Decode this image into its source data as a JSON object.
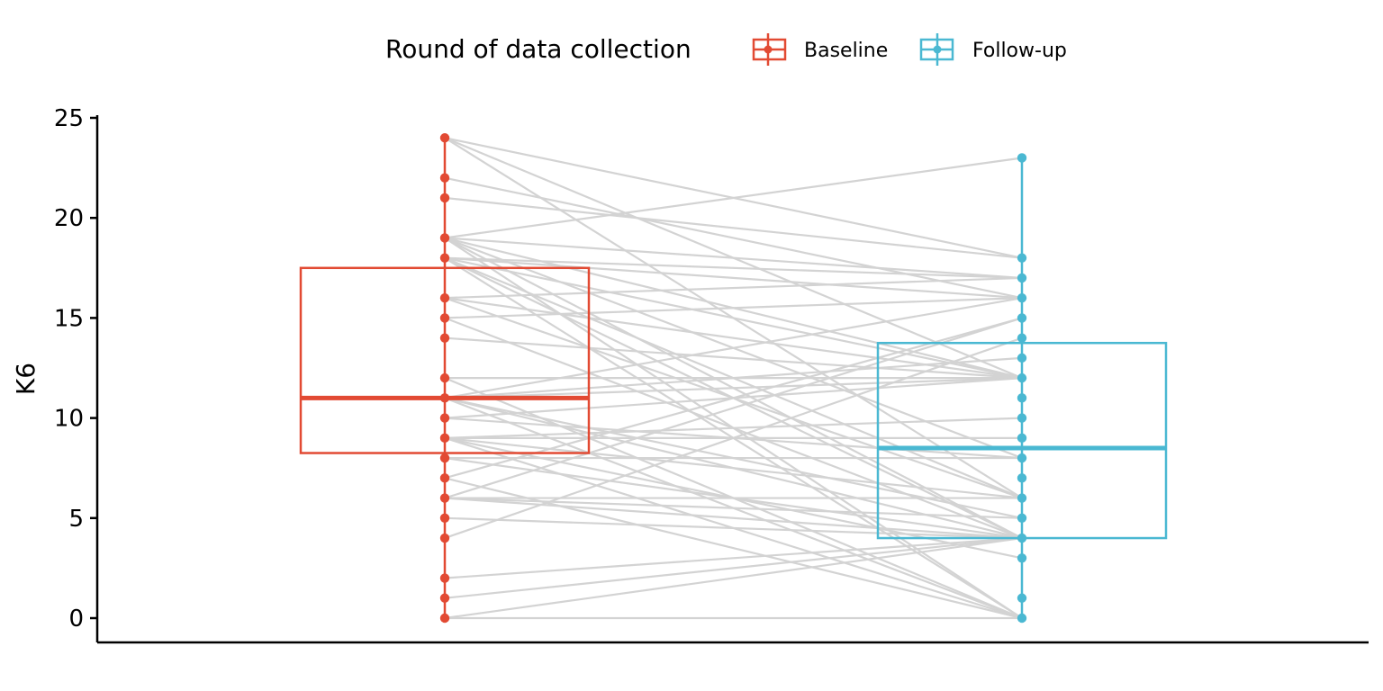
{
  "legend": {
    "title": "Round of data collection",
    "entries": [
      "Baseline",
      "Follow-up"
    ]
  },
  "colors": {
    "baseline": "#E24A33",
    "followup": "#4AB8D2",
    "pair_line": "#D3D3D3",
    "axis": "#000000"
  },
  "chart_data": {
    "type": "boxplot_paired",
    "ylabel": "K6",
    "xlabel": "",
    "ylim": [
      0,
      25
    ],
    "yticks": [
      0,
      5,
      10,
      15,
      20,
      25
    ],
    "legend_position": "top",
    "grid": false,
    "series": [
      {
        "name": "Baseline",
        "box": {
          "q1": 8.25,
          "median": 11,
          "q3": 17.5,
          "min": 0,
          "max": 24
        },
        "points": [
          24,
          22,
          21,
          19,
          18,
          16,
          15,
          14,
          12,
          11,
          10,
          9,
          8,
          7,
          6,
          5,
          4,
          2,
          1,
          0
        ]
      },
      {
        "name": "Follow-up",
        "box": {
          "q1": 4,
          "median": 8.5,
          "q3": 13.75,
          "min": 0,
          "max": 23
        },
        "points": [
          23,
          18,
          17,
          16,
          15,
          14,
          13,
          12,
          11,
          10,
          9,
          8,
          7,
          6,
          5,
          4,
          3,
          1,
          0
        ]
      }
    ],
    "pairs": [
      [
        24,
        18
      ],
      [
        24,
        12
      ],
      [
        24,
        6
      ],
      [
        22,
        16
      ],
      [
        21,
        18
      ],
      [
        19,
        23
      ],
      [
        19,
        17
      ],
      [
        19,
        12
      ],
      [
        19,
        8
      ],
      [
        19,
        4
      ],
      [
        19,
        0
      ],
      [
        18,
        17
      ],
      [
        18,
        16
      ],
      [
        18,
        12
      ],
      [
        18,
        6
      ],
      [
        18,
        4
      ],
      [
        18,
        0
      ],
      [
        16,
        17
      ],
      [
        16,
        12
      ],
      [
        16,
        6
      ],
      [
        15,
        16
      ],
      [
        15,
        4
      ],
      [
        14,
        12
      ],
      [
        12,
        12
      ],
      [
        12,
        0
      ],
      [
        11,
        16
      ],
      [
        11,
        13
      ],
      [
        11,
        12
      ],
      [
        11,
        5
      ],
      [
        11,
        4
      ],
      [
        11,
        0
      ],
      [
        10,
        12
      ],
      [
        10,
        8
      ],
      [
        9,
        10
      ],
      [
        9,
        9
      ],
      [
        9,
        6
      ],
      [
        9,
        3
      ],
      [
        9,
        0
      ],
      [
        8,
        8
      ],
      [
        8,
        4
      ],
      [
        7,
        15
      ],
      [
        7,
        0
      ],
      [
        6,
        15
      ],
      [
        6,
        6
      ],
      [
        6,
        5
      ],
      [
        6,
        4
      ],
      [
        5,
        4
      ],
      [
        4,
        14
      ],
      [
        2,
        4
      ],
      [
        1,
        4
      ],
      [
        0,
        4
      ],
      [
        0,
        0
      ]
    ]
  }
}
